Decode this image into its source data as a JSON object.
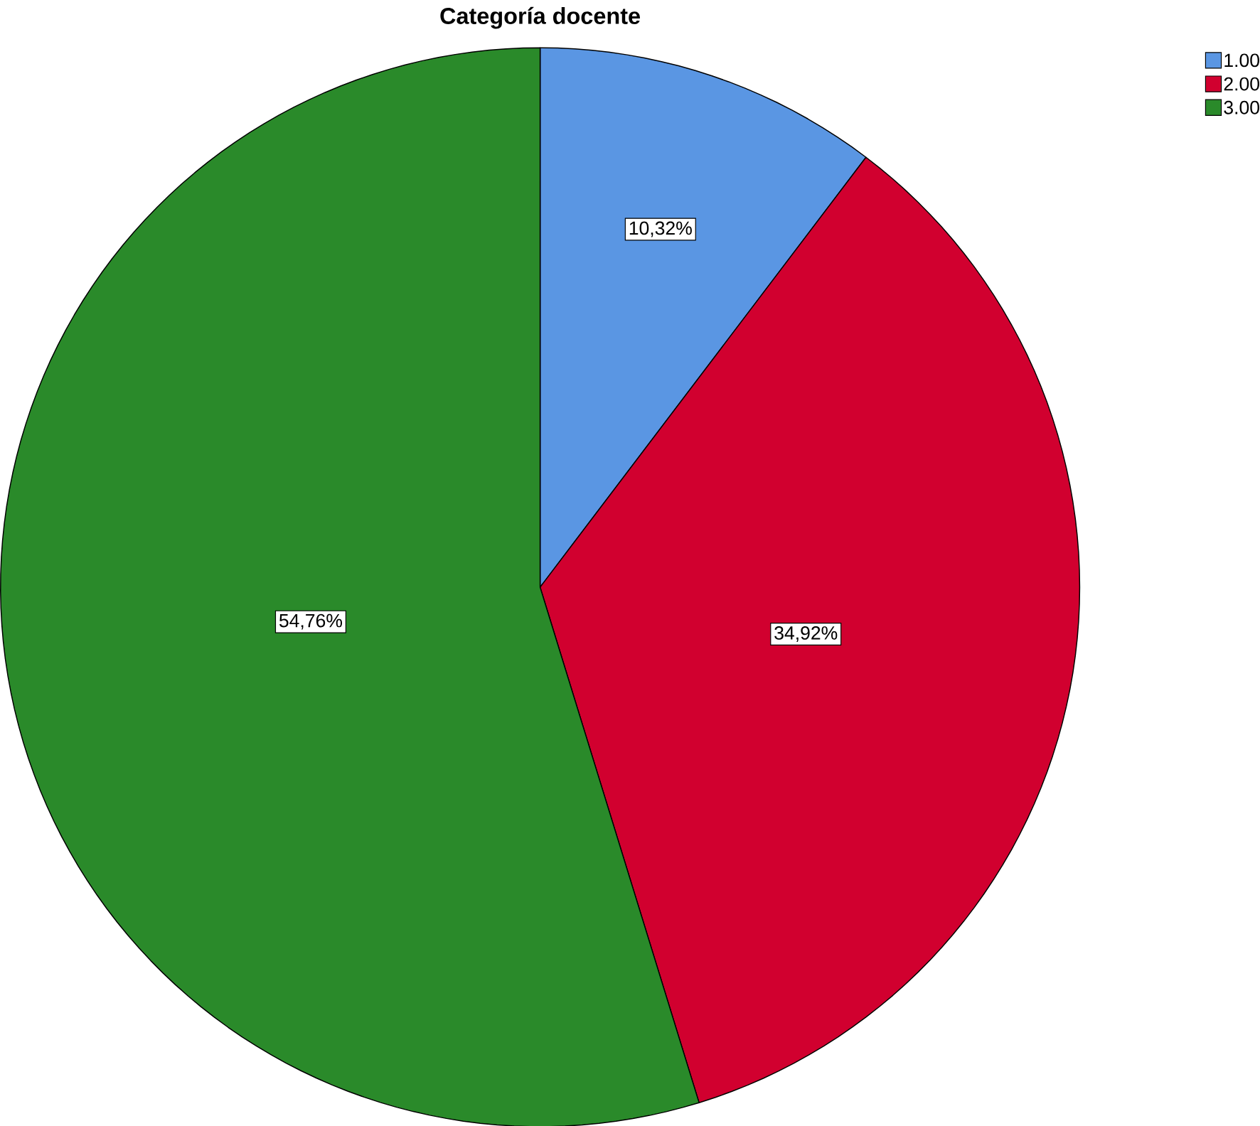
{
  "chart_data": {
    "type": "pie",
    "title": "Categoría docente",
    "categories": [
      "1.00",
      "2.00",
      "3.00"
    ],
    "values": [
      10.32,
      34.92,
      54.76
    ],
    "value_labels": [
      "10,32%",
      "34,92%",
      "54,76%"
    ],
    "colors": [
      "#5a96e3",
      "#d1002f",
      "#2a8a2a"
    ],
    "legend": "top right"
  }
}
